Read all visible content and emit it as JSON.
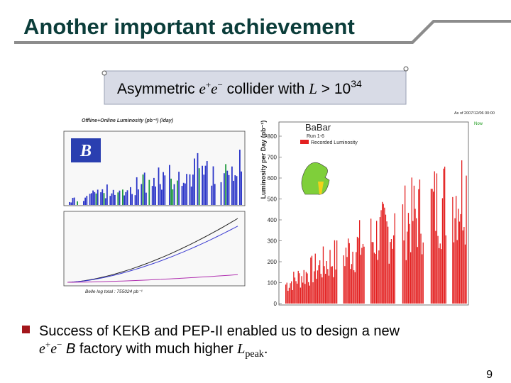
{
  "title": "Another important achievement",
  "callout": [
    "Asymmetric ",
    "e",
    "+",
    "e",
    "−",
    " collider with ",
    "L",
    " > 10",
    "34"
  ],
  "left_plot": {
    "title": "Offline+Online Luminosity (pb⁻¹) (/day)",
    "logo": "B",
    "footer": "Belle log total : 755024 pb⁻¹"
  },
  "right_plot": {
    "logo": "BaBar",
    "run": "Run 1-6",
    "legend": "Recorded Luminosity",
    "ylabel": "Luminosity per Day (pb⁻¹)",
    "yticks": [
      0,
      100,
      200,
      300,
      400,
      500,
      600,
      700,
      800
    ],
    "stamp": "As of 2007/12/06 00:00",
    "now": "Now"
  },
  "bullet": {
    "line1": "Success of KEKB and PEP-II enabled us to design a new",
    "line2": [
      "e",
      "+",
      "e",
      "−",
      " B",
      " factory with much higher ",
      "L",
      "peak",
      "."
    ]
  },
  "page_number": "9"
}
